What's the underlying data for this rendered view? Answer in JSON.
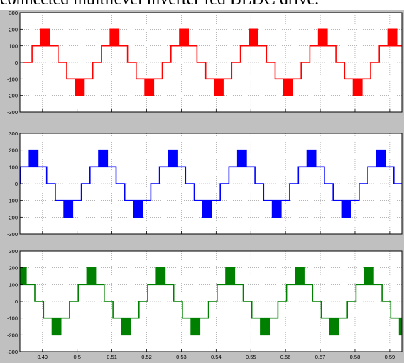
{
  "caption": "connected multilevel inverter fed BLDC drive.",
  "chart_data": [
    {
      "type": "line",
      "color": "#ff0000",
      "ylim": [
        -300,
        300
      ],
      "xlim": [
        0.4835,
        0.5935
      ],
      "yticks": [
        -300,
        -200,
        -100,
        0,
        100,
        200,
        300
      ],
      "ytick_labels": [
        "-300",
        "-200",
        "-100",
        "0",
        "100",
        "200",
        "300"
      ],
      "grid": true,
      "waveform": {
        "period": 0.02,
        "phase_start": 0.4845,
        "levels": [
          0,
          100,
          200,
          100,
          0,
          -100,
          -200,
          -100
        ],
        "amplitude": 200
      }
    },
    {
      "type": "line",
      "color": "#0000ff",
      "ylim": [
        -300,
        300
      ],
      "xlim": [
        0.4835,
        0.5935
      ],
      "yticks": [
        -300,
        -200,
        -100,
        0,
        100,
        200,
        300
      ],
      "ytick_labels": [
        "-300",
        "-200",
        "-100",
        "0",
        "100",
        "200",
        "300"
      ],
      "grid": true,
      "waveform": {
        "period": 0.02,
        "phase_start": 0.4812,
        "levels": [
          0,
          100,
          200,
          100,
          0,
          -100,
          -200,
          -100
        ],
        "amplitude": 200
      }
    },
    {
      "type": "line",
      "color": "#008000",
      "ylim": [
        -300,
        300
      ],
      "xlim": [
        0.4835,
        0.5935
      ],
      "yticks": [
        -300,
        -200,
        -100,
        0,
        100,
        200,
        300
      ],
      "ytick_labels": [
        "-300",
        "-200",
        "-100",
        "0",
        "100",
        "200",
        "300"
      ],
      "xticks": [
        0.49,
        0.5,
        0.51,
        0.52,
        0.53,
        0.54,
        0.55,
        0.56,
        0.57,
        0.58,
        0.59
      ],
      "xtick_labels": [
        "0.49",
        "0.5",
        "0.51",
        "0.52",
        "0.53",
        "0.54",
        "0.55",
        "0.56",
        "0.57",
        "0.58",
        "0.59"
      ],
      "grid": true,
      "waveform": {
        "period": 0.02,
        "phase_start": 0.4778,
        "levels": [
          0,
          100,
          200,
          100,
          0,
          -100,
          -200,
          -100
        ],
        "amplitude": 200
      }
    }
  ]
}
